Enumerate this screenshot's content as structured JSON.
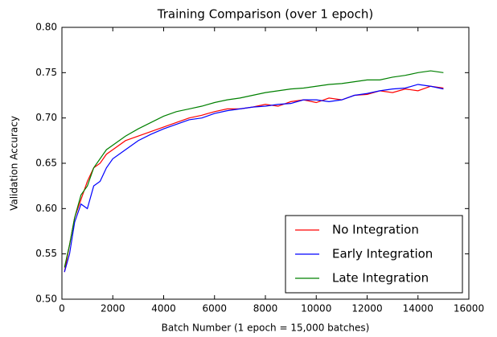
{
  "chart_data": {
    "type": "line",
    "title": "Training Comparison (over 1 epoch)",
    "xlabel": "Batch Number (1 epoch = 15,000 batches)",
    "ylabel": "Validation Accuracy",
    "x": [
      100,
      300,
      500,
      750,
      1000,
      1250,
      1500,
      1750,
      2000,
      2500,
      3000,
      3500,
      4000,
      4500,
      5000,
      5500,
      6000,
      6500,
      7000,
      7500,
      8000,
      8500,
      9000,
      9500,
      10000,
      10500,
      11000,
      11500,
      12000,
      12500,
      13000,
      13500,
      14000,
      14500,
      15000
    ],
    "series": [
      {
        "name": "No Integration",
        "color": "#ff0000",
        "values": [
          0.53,
          0.56,
          0.59,
          0.61,
          0.63,
          0.645,
          0.65,
          0.66,
          0.665,
          0.675,
          0.68,
          0.685,
          0.69,
          0.695,
          0.7,
          0.703,
          0.707,
          0.71,
          0.71,
          0.712,
          0.715,
          0.713,
          0.718,
          0.72,
          0.717,
          0.722,
          0.72,
          0.725,
          0.726,
          0.73,
          0.728,
          0.732,
          0.73,
          0.735,
          0.733
        ]
      },
      {
        "name": "Early Integration",
        "color": "#0000ff",
        "values": [
          0.53,
          0.55,
          0.585,
          0.605,
          0.6,
          0.625,
          0.63,
          0.645,
          0.655,
          0.665,
          0.675,
          0.682,
          0.688,
          0.693,
          0.698,
          0.7,
          0.705,
          0.708,
          0.71,
          0.712,
          0.713,
          0.715,
          0.716,
          0.72,
          0.72,
          0.718,
          0.72,
          0.725,
          0.727,
          0.73,
          0.732,
          0.733,
          0.737,
          0.735,
          0.732
        ]
      },
      {
        "name": "Late Integration",
        "color": "#008000",
        "values": [
          0.535,
          0.56,
          0.59,
          0.615,
          0.625,
          0.645,
          0.655,
          0.665,
          0.67,
          0.68,
          0.688,
          0.695,
          0.702,
          0.707,
          0.71,
          0.713,
          0.717,
          0.72,
          0.722,
          0.725,
          0.728,
          0.73,
          0.732,
          0.733,
          0.735,
          0.737,
          0.738,
          0.74,
          0.742,
          0.742,
          0.745,
          0.747,
          0.75,
          0.752,
          0.75
        ]
      }
    ],
    "xlim": [
      0,
      16000
    ],
    "xticks": [
      0,
      2000,
      4000,
      6000,
      8000,
      10000,
      12000,
      14000,
      16000
    ],
    "ylim": [
      0.5,
      0.8
    ],
    "yticks": [
      {
        "value": 0.5,
        "label": "0.50"
      },
      0.55,
      {
        "value": 0.6,
        "label": "0.60"
      },
      0.65,
      {
        "value": 0.7,
        "label": "0.70"
      },
      0.75,
      {
        "value": 0.8,
        "label": "0.80"
      }
    ],
    "legend": "lower right"
  }
}
